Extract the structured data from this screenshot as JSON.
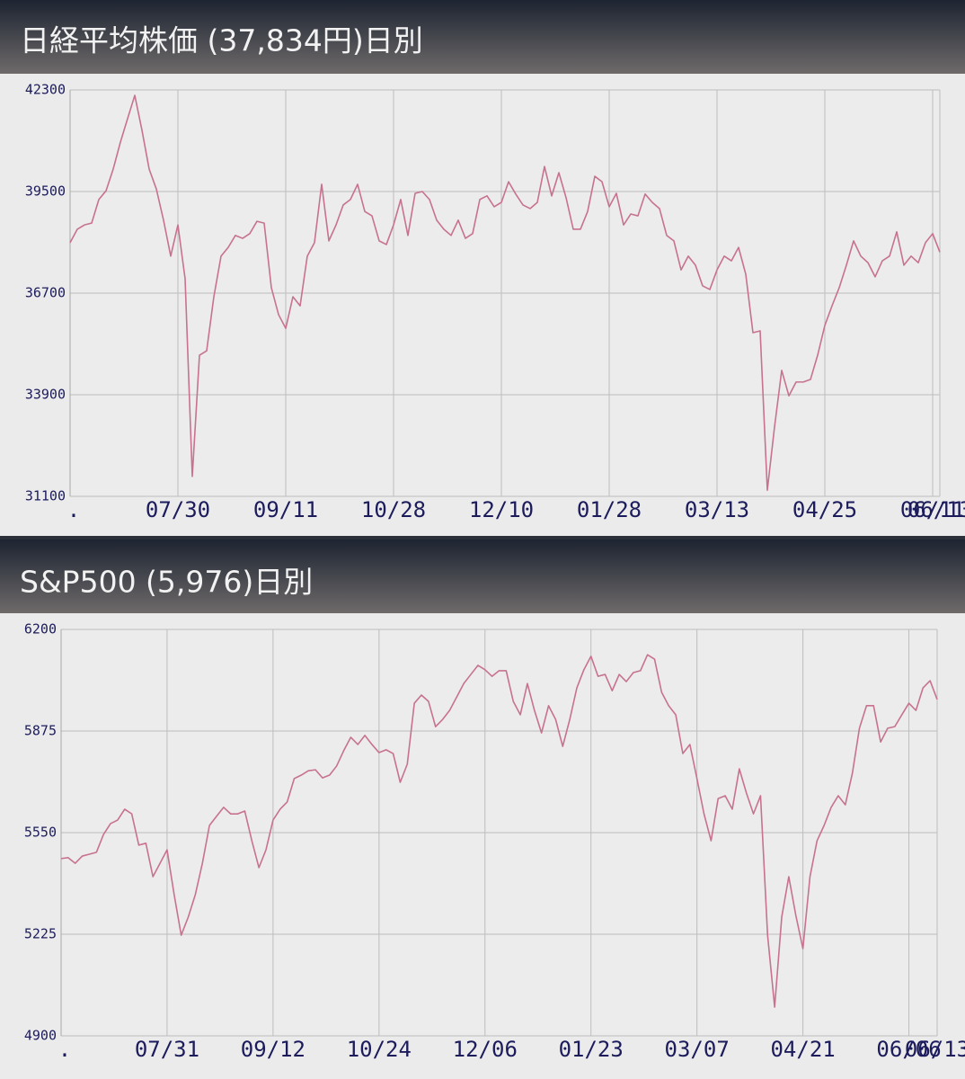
{
  "chart_data": [
    {
      "type": "line",
      "title": "日経平均株価 (37,834円)日別",
      "categories": [
        ".",
        null,
        null,
        null,
        null,
        null,
        null,
        null,
        null,
        null,
        null,
        null,
        null,
        null,
        null,
        "07/30",
        null,
        null,
        null,
        null,
        null,
        null,
        null,
        null,
        null,
        null,
        null,
        null,
        null,
        null,
        "09/11",
        null,
        null,
        null,
        null,
        null,
        null,
        null,
        null,
        null,
        null,
        null,
        null,
        null,
        null,
        "10/28",
        null,
        null,
        null,
        null,
        null,
        null,
        null,
        null,
        null,
        null,
        null,
        null,
        null,
        null,
        "12/10",
        null,
        null,
        null,
        null,
        null,
        null,
        null,
        null,
        null,
        null,
        null,
        null,
        null,
        null,
        "01/28",
        null,
        null,
        null,
        null,
        null,
        null,
        null,
        null,
        null,
        null,
        null,
        null,
        null,
        null,
        "03/13",
        null,
        null,
        null,
        null,
        null,
        null,
        null,
        null,
        null,
        null,
        null,
        null,
        null,
        null,
        "04/25",
        null,
        null,
        null,
        null,
        null,
        null,
        null,
        null,
        null,
        null,
        null,
        null,
        null,
        null,
        "06/11",
        "06/13"
      ],
      "values": [
        38090,
        38460,
        38580,
        38630,
        39280,
        39520,
        40120,
        40860,
        41510,
        42150,
        41190,
        40120,
        39570,
        38710,
        37720,
        38580,
        37100,
        31650,
        34990,
        35110,
        36600,
        37720,
        37960,
        38290,
        38210,
        38340,
        38680,
        38630,
        36850,
        36110,
        35730,
        36600,
        36350,
        37720,
        38090,
        39700,
        38140,
        38580,
        39130,
        39280,
        39700,
        38950,
        38830,
        38140,
        38040,
        38580,
        39280,
        38290,
        39450,
        39500,
        39280,
        38710,
        38460,
        38290,
        38710,
        38210,
        38340,
        39280,
        39380,
        39080,
        39200,
        39770,
        39430,
        39130,
        39030,
        39200,
        40190,
        39380,
        40020,
        39330,
        38460,
        38460,
        38950,
        39920,
        39770,
        39080,
        39450,
        38580,
        38880,
        38830,
        39430,
        39200,
        39030,
        38290,
        38140,
        37340,
        37720,
        37470,
        36900,
        36800,
        37340,
        37720,
        37590,
        37960,
        37220,
        35610,
        35660,
        31270,
        33010,
        34570,
        33870,
        34250,
        34250,
        34320,
        34990,
        35810,
        36350,
        36850,
        37470,
        38140,
        37720,
        37540,
        37150,
        37590,
        37720,
        38390,
        37470,
        37720,
        37540,
        38090,
        38340,
        37830
      ],
      "color": "#c7728f",
      "ylim": [
        31100,
        42300
      ],
      "yticks": [
        42300,
        39500,
        36700,
        33900,
        31100
      ],
      "grid": true
    },
    {
      "type": "line",
      "title": "S&P500 (5,976)日別",
      "categories": [
        ".",
        null,
        null,
        null,
        null,
        null,
        null,
        null,
        null,
        null,
        null,
        null,
        null,
        null,
        null,
        "07/31",
        null,
        null,
        null,
        null,
        null,
        null,
        null,
        null,
        null,
        null,
        null,
        null,
        null,
        null,
        "09/12",
        null,
        null,
        null,
        null,
        null,
        null,
        null,
        null,
        null,
        null,
        null,
        null,
        null,
        null,
        "10/24",
        null,
        null,
        null,
        null,
        null,
        null,
        null,
        null,
        null,
        null,
        null,
        null,
        null,
        null,
        "12/06",
        null,
        null,
        null,
        null,
        null,
        null,
        null,
        null,
        null,
        null,
        null,
        null,
        null,
        null,
        "01/23",
        null,
        null,
        null,
        null,
        null,
        null,
        null,
        null,
        null,
        null,
        null,
        null,
        null,
        null,
        "03/07",
        null,
        null,
        null,
        null,
        null,
        null,
        null,
        null,
        null,
        null,
        null,
        null,
        null,
        null,
        "04/21",
        null,
        null,
        null,
        null,
        null,
        null,
        null,
        null,
        null,
        null,
        null,
        null,
        null,
        null,
        "06/06",
        null,
        null,
        null,
        "06/13"
      ],
      "values": [
        5467,
        5470,
        5452,
        5475,
        5481,
        5487,
        5544,
        5579,
        5590,
        5625,
        5610,
        5510,
        5516,
        5409,
        5452,
        5495,
        5352,
        5222,
        5280,
        5352,
        5452,
        5573,
        5602,
        5631,
        5610,
        5610,
        5619,
        5524,
        5438,
        5495,
        5590,
        5625,
        5648,
        5723,
        5734,
        5748,
        5751,
        5725,
        5734,
        5763,
        5812,
        5855,
        5832,
        5861,
        5832,
        5806,
        5815,
        5803,
        5711,
        5769,
        5964,
        5990,
        5970,
        5889,
        5912,
        5941,
        5984,
        6027,
        6056,
        6085,
        6071,
        6050,
        6068,
        6068,
        5970,
        5927,
        6027,
        5941,
        5869,
        5956,
        5912,
        5826,
        5912,
        6013,
        6071,
        6114,
        6050,
        6056,
        6004,
        6056,
        6033,
        6062,
        6068,
        6119,
        6105,
        5999,
        5956,
        5927,
        5803,
        5832,
        5723,
        5610,
        5524,
        5659,
        5668,
        5625,
        5754,
        5677,
        5610,
        5668,
        5222,
        4992,
        5280,
        5409,
        5285,
        5179,
        5409,
        5524,
        5573,
        5631,
        5668,
        5639,
        5740,
        5884,
        5956,
        5956,
        5840,
        5884,
        5889,
        5927,
        5964,
        5941,
        6013,
        6036,
        5976
      ],
      "color": "#c7728f",
      "ylim": [
        4900,
        6200
      ],
      "yticks": [
        6200,
        5875,
        5550,
        5225,
        4900
      ],
      "grid": true
    }
  ]
}
